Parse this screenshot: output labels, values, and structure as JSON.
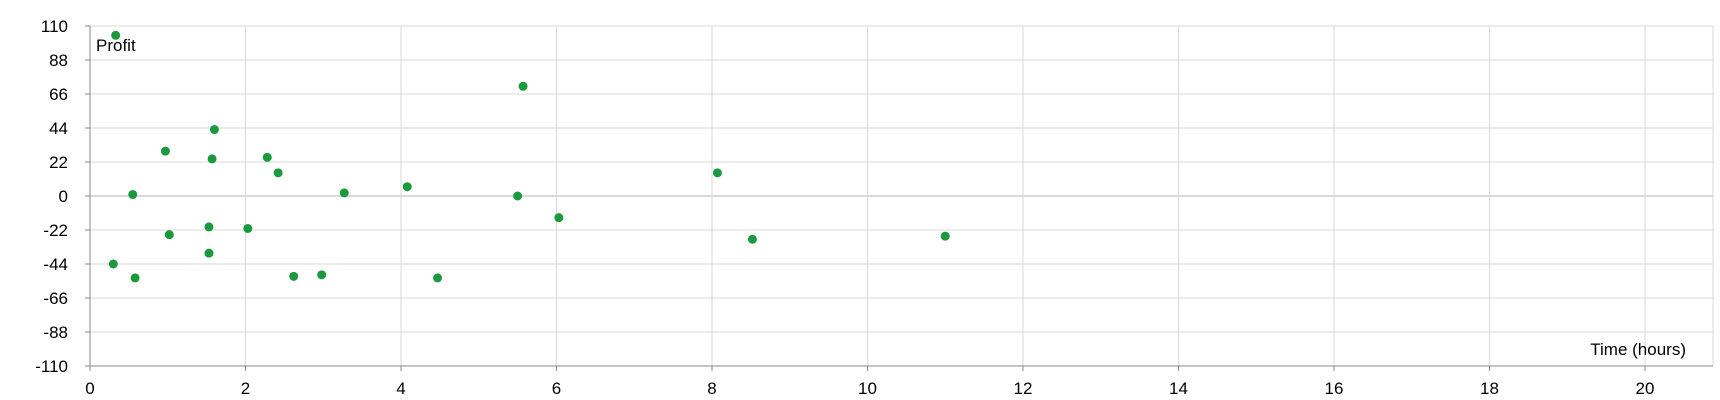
{
  "chart_data": {
    "type": "scatter",
    "title": "",
    "xlabel": "Time (hours)",
    "ylabel": "Profit",
    "xlim": [
      0,
      20.9
    ],
    "ylim": [
      -110,
      110
    ],
    "xticks": [
      0,
      2,
      4,
      6,
      8,
      10,
      12,
      14,
      16,
      18,
      20
    ],
    "yticks": [
      -110,
      -88,
      -66,
      -44,
      -22,
      0,
      22,
      44,
      66,
      88,
      110
    ],
    "grid": true,
    "legend": "none",
    "colors": {
      "points": "#1a9a3c",
      "grid": "#d9d9d9",
      "zero_line": "#b3b3b3",
      "axis": "#888888"
    },
    "series": [
      {
        "x": [
          0.33,
          0.3,
          0.55,
          0.58,
          0.97,
          1.02,
          1.53,
          1.53,
          1.57,
          1.6,
          2.03,
          2.28,
          2.42,
          2.62,
          2.98,
          3.27,
          4.08,
          4.47,
          5.5,
          5.57,
          6.03,
          8.07,
          8.52,
          11.0
        ],
        "y": [
          104,
          -44,
          1,
          -53,
          29,
          -25,
          -20,
          -37,
          24,
          43,
          -21,
          25,
          15,
          -52,
          -51,
          2,
          6,
          -53,
          0,
          71,
          -14,
          15,
          -28,
          -26
        ]
      }
    ]
  }
}
